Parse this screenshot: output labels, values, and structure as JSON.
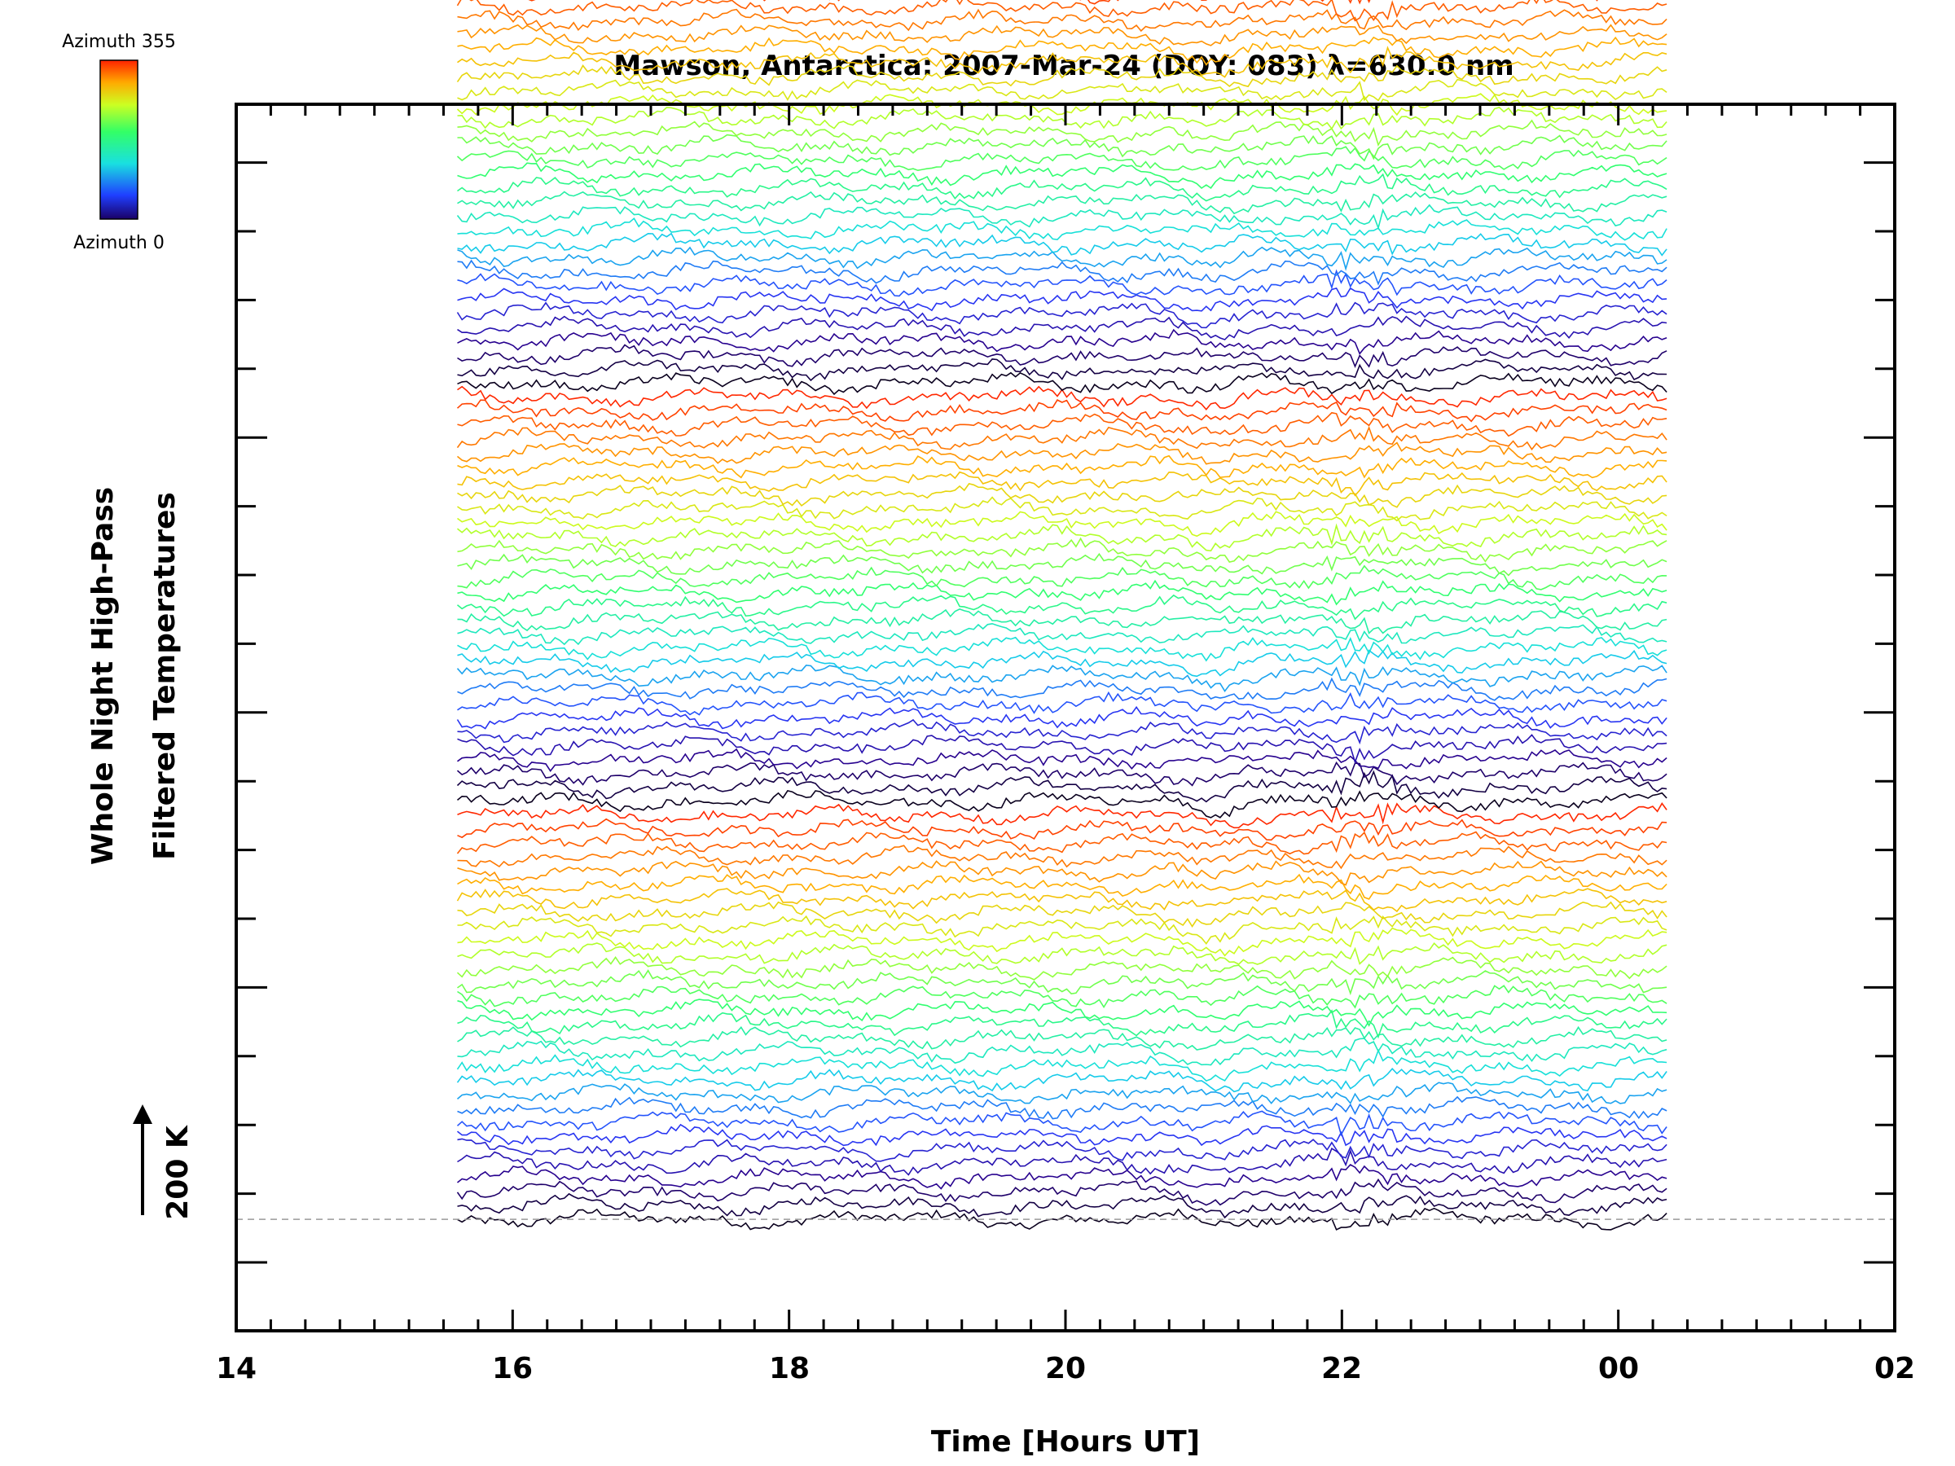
{
  "chart_data": {
    "type": "line",
    "title": "Mawson, Antarctica: 2007-Mar-24 (DOY: 083) λ=630.0 nm",
    "xlabel": "Time [Hours UT]",
    "ylabel_line1": "Whole Night High-Pass",
    "ylabel_line2": "Filtered Temperatures",
    "scale_label": "200 K",
    "colorbar": {
      "top_label": "Azimuth 355",
      "bottom_label": "Azimuth 0"
    },
    "x_tick_labels": [
      "14",
      "16",
      "18",
      "20",
      "22",
      "00",
      "02"
    ],
    "xlim": [
      14,
      26
    ],
    "ylim": [
      -1.6,
      16.0
    ],
    "x_start": 15.6,
    "x_end": 24.35,
    "baseline_dashed": true,
    "series_count": 94,
    "azimuth_range": [
      0,
      355
    ],
    "series_offset_step": 0.2,
    "scale_bar_value": 1.0
  }
}
